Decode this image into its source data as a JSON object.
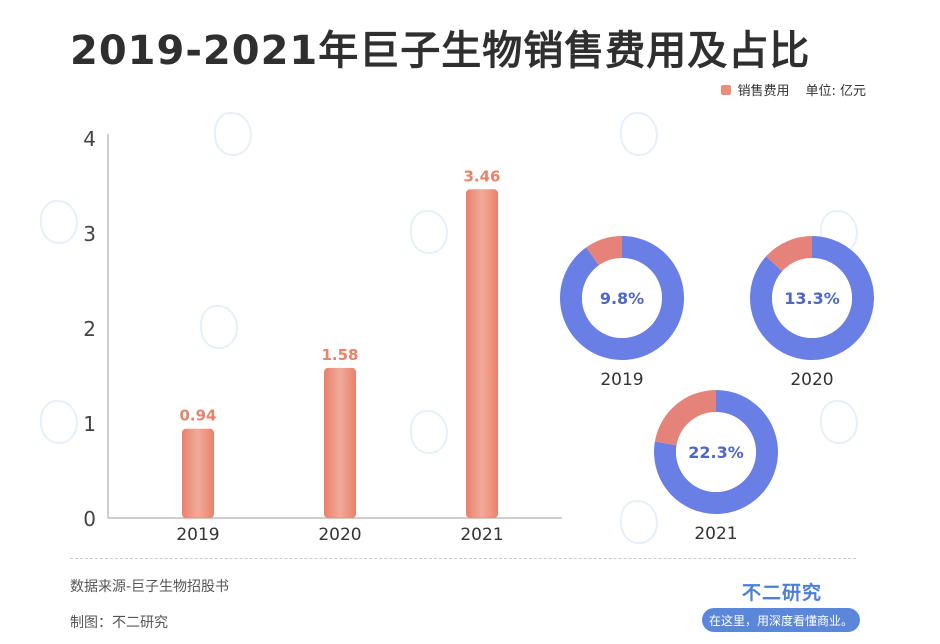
{
  "title": "2019-2021年巨子生物销售费用及占比",
  "legend": {
    "label": "销售费用",
    "unit": "单位: 亿元",
    "color": "#ec8e79"
  },
  "chart_data": [
    {
      "type": "bar",
      "categories": [
        "2019",
        "2020",
        "2021"
      ],
      "series": [
        {
          "name": "销售费用",
          "values": [
            0.94,
            1.58,
            3.46
          ]
        }
      ],
      "data_labels": [
        "0.94",
        "1.58",
        "3.46"
      ],
      "yticks": [
        "0",
        "1",
        "2",
        "3",
        "4"
      ],
      "ylim": [
        0,
        4
      ],
      "grid": false,
      "bar_color": "#ec8e79",
      "label_color": "#e8836a"
    },
    {
      "type": "pie",
      "style": "donut",
      "items": [
        {
          "year": "2019",
          "value": 9.8,
          "label": "9.8%"
        },
        {
          "year": "2020",
          "value": 13.3,
          "label": "13.3%"
        },
        {
          "year": "2021",
          "value": 22.3,
          "label": "22.3%"
        }
      ],
      "share_color": "#e5837b",
      "rest_color": "#6a7fe5",
      "label_color": "#4f66c4"
    }
  ],
  "footer": {
    "source": "数据来源-巨子生物招股书",
    "maker": "制图：不二研究",
    "brand": "不二研究",
    "slogan": "在这里，用深度看懂商业。"
  }
}
